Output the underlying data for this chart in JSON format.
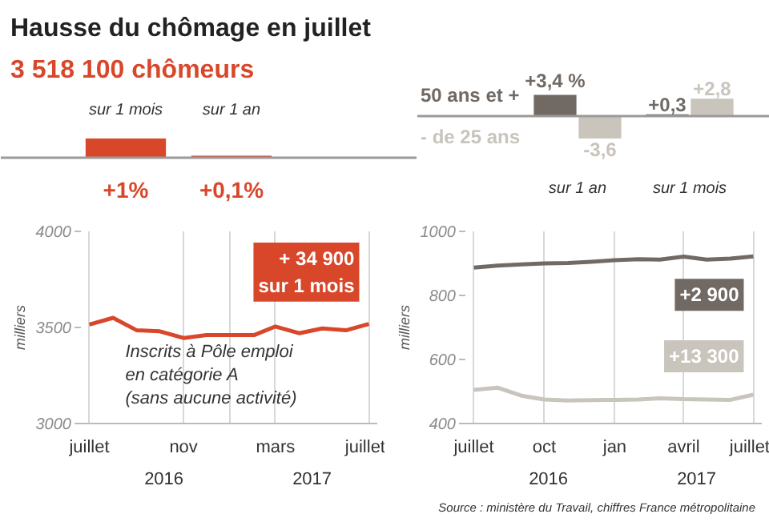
{
  "chart_data": [
    {
      "type": "bar",
      "title": "Hausse du chômage en juillet",
      "subtitle": "3 518 100 chômeurs",
      "categories": [
        "sur 1 mois",
        "sur 1 an"
      ],
      "values": [
        1,
        0.1
      ],
      "color": "#d9472b",
      "value_labels": [
        "+1%",
        "+0,1%"
      ]
    },
    {
      "type": "bar",
      "categories": [
        "sur 1 an",
        "sur 1 mois"
      ],
      "legend": "left",
      "series": [
        {
          "name": "50 ans et +",
          "color": "#716a64",
          "values": [
            3.4,
            0.3
          ],
          "value_labels": [
            "+3,4 %",
            "+0,3"
          ]
        },
        {
          "name": "- de 25 ans",
          "color": "#c9c4bc",
          "values": [
            -3.6,
            2.8
          ],
          "value_labels": [
            "-3,6",
            "+2,8"
          ]
        }
      ]
    },
    {
      "type": "line",
      "ylabel": "milliers",
      "x": [
        "2016-07",
        "2016-08",
        "2016-09",
        "2016-10",
        "2016-11",
        "2016-12",
        "2017-01",
        "2017-02",
        "2017-03",
        "2017-04",
        "2017-05",
        "2017-06",
        "2017-07"
      ],
      "xlim": [
        "2016-06-20",
        "2017-07-12"
      ],
      "ylim": [
        3000,
        4000
      ],
      "yticks": [
        3000,
        3500,
        4000
      ],
      "xticks": [
        {
          "value": "2016-07",
          "label": "juillet"
        },
        {
          "value": "2016-11",
          "label": "nov"
        },
        {
          "value": "2017-01",
          "label": null
        },
        {
          "value": "2017-03",
          "label": "mars"
        },
        {
          "value": "2017-07",
          "label": "juillet"
        }
      ],
      "grid": "x",
      "series": [
        {
          "color": "#d9472b",
          "values": [
            3515,
            3550,
            3485,
            3480,
            3445,
            3460,
            3460,
            3460,
            3505,
            3470,
            3495,
            3485,
            3518
          ]
        }
      ],
      "annotations": [
        {
          "text": "+ 34 900\nsur 1 mois",
          "x": "2017-07",
          "y": 3518
        },
        "Inscrits à Pôle emploi\nen catégorie A\n(sans aucune activité)",
        "2016",
        "2017"
      ]
    },
    {
      "type": "line",
      "ylabel": "milliers",
      "x": [
        "2016-07",
        "2016-08",
        "2016-09",
        "2016-10",
        "2016-11",
        "2016-12",
        "2017-01",
        "2017-02",
        "2017-03",
        "2017-04",
        "2017-05",
        "2017-06",
        "2017-07"
      ],
      "xlim": [
        "2016-06-20",
        "2017-07-12"
      ],
      "ylim": [
        400,
        1000
      ],
      "yticks": [
        400,
        600,
        800,
        1000
      ],
      "xticks": [
        {
          "value": "2016-07",
          "label": "juillet"
        },
        {
          "value": "2016-10",
          "label": "oct"
        },
        {
          "value": "2017-01",
          "label": "jan"
        },
        {
          "value": "2017-04",
          "label": "avril"
        },
        {
          "value": "2017-07",
          "label": "juillet"
        }
      ],
      "grid": "x",
      "series": [
        {
          "color": "#716a64",
          "values": [
            887,
            893,
            897,
            900,
            901,
            905,
            910,
            913,
            912,
            921,
            912,
            915,
            922
          ]
        },
        {
          "color": "#c9c4bc",
          "values": [
            505,
            512,
            487,
            475,
            472,
            473,
            474,
            475,
            479,
            476,
            475,
            474,
            490
          ]
        }
      ],
      "annotations": [
        {
          "text": "+2 900",
          "x": "2017-07",
          "y": 922
        },
        {
          "text": "+13 300",
          "x": "2017-07",
          "y": 490
        },
        "2016",
        "2017",
        "Source : ministère du Travail, chiffres France métropolitaine"
      ]
    }
  ]
}
